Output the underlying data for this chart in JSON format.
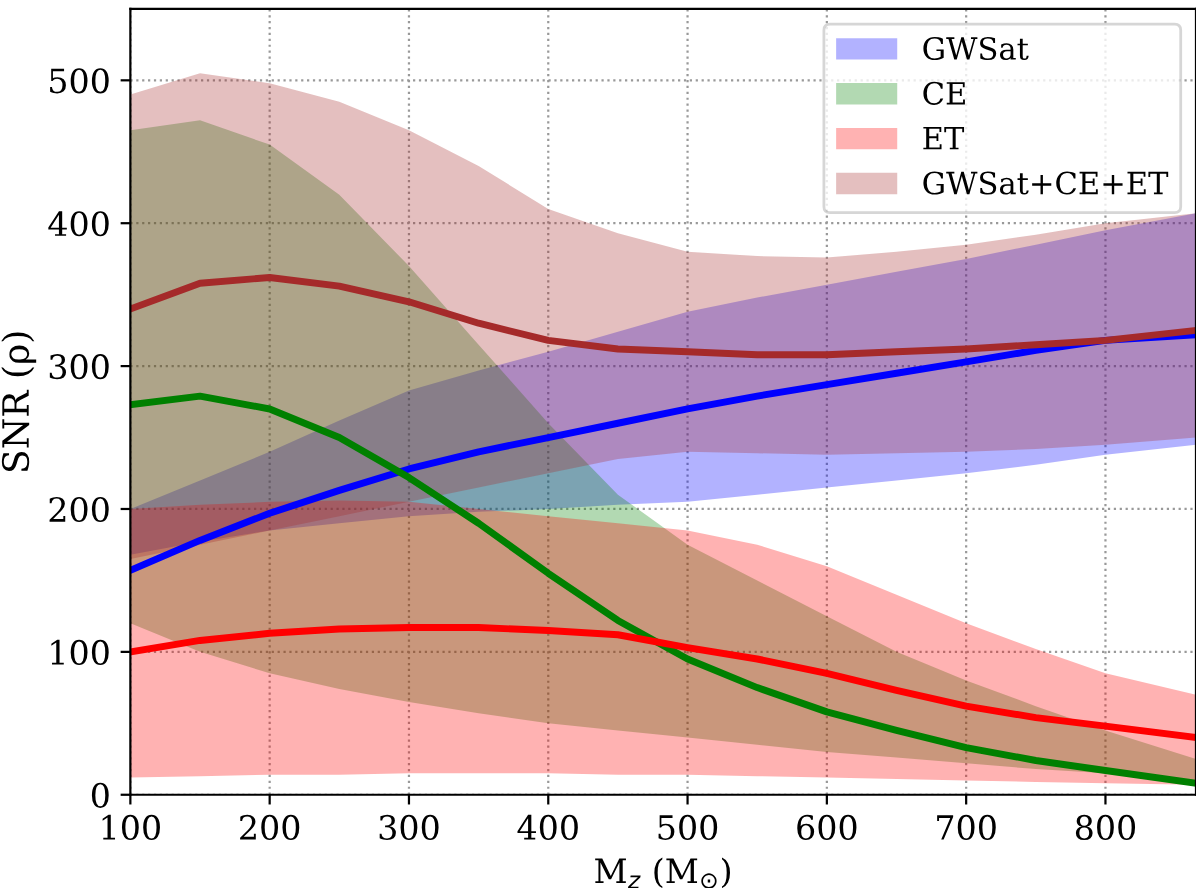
{
  "chart_data": {
    "type": "line",
    "xlabel": "M$_{z}$ (M$_{⊙}$)",
    "ylabel": "SNR (ρ)",
    "x": [
      100,
      150,
      200,
      250,
      300,
      350,
      400,
      450,
      500,
      550,
      600,
      650,
      700,
      750,
      800,
      865
    ],
    "xlim": [
      100,
      865
    ],
    "ylim": [
      0,
      550
    ],
    "xticks": [
      100,
      200,
      300,
      400,
      500,
      600,
      700,
      800
    ],
    "yticks": [
      0,
      100,
      200,
      300,
      400,
      500
    ],
    "grid": true,
    "legend": "top right",
    "line_style": "solid",
    "marker": "none",
    "series": [
      {
        "name": "GWSat",
        "color": "#0000ff",
        "values": [
          157,
          178,
          197,
          213,
          228,
          240,
          250,
          260,
          270,
          279,
          287,
          295,
          303,
          311,
          318,
          322
        ],
        "lower": [
          168,
          177,
          185,
          190,
          195,
          198,
          200,
          203,
          205,
          210,
          215,
          220,
          225,
          231,
          238,
          245
        ],
        "upper": [
          200,
          220,
          240,
          262,
          283,
          297,
          310,
          324,
          338,
          348,
          357,
          366,
          375,
          385,
          395,
          407
        ]
      },
      {
        "name": "CE",
        "color": "#008000",
        "values": [
          273,
          279,
          270,
          250,
          222,
          190,
          155,
          122,
          95,
          75,
          58,
          45,
          33,
          24,
          17,
          8
        ],
        "lower": [
          120,
          100,
          85,
          74,
          65,
          57,
          50,
          45,
          40,
          35,
          30,
          26,
          22,
          18,
          15,
          10
        ],
        "upper": [
          465,
          472,
          455,
          420,
          370,
          315,
          260,
          210,
          175,
          150,
          125,
          100,
          80,
          62,
          45,
          25
        ]
      },
      {
        "name": "ET",
        "color": "#ff0000",
        "values": [
          100,
          108,
          113,
          116,
          117,
          117,
          115,
          112,
          103,
          95,
          85,
          73,
          62,
          54,
          48,
          40
        ],
        "lower": [
          12,
          13,
          14,
          14,
          15,
          15,
          15,
          14,
          14,
          13,
          12,
          11,
          10,
          9,
          8,
          7
        ],
        "upper": [
          200,
          203,
          205,
          206,
          205,
          200,
          195,
          190,
          185,
          175,
          160,
          140,
          120,
          102,
          85,
          70
        ]
      },
      {
        "name": "GWSat+CE+ET",
        "color": "#a52a2a",
        "values": [
          340,
          358,
          362,
          356,
          345,
          330,
          318,
          312,
          310,
          308,
          308,
          310,
          312,
          315,
          318,
          325
        ],
        "lower": [
          165,
          175,
          185,
          195,
          205,
          215,
          225,
          235,
          240,
          239,
          238,
          239,
          240,
          242,
          245,
          250
        ],
        "upper": [
          490,
          505,
          498,
          485,
          465,
          440,
          410,
          393,
          380,
          377,
          376,
          380,
          385,
          392,
          400,
          407
        ]
      }
    ]
  }
}
